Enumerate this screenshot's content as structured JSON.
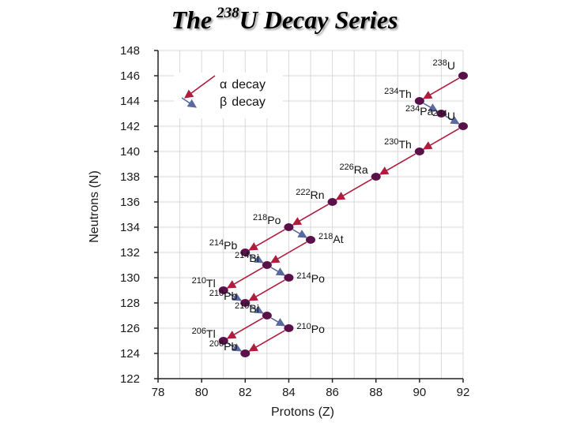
{
  "title": {
    "prefix": "The",
    "mass_number": "238",
    "rest": "U Decay Series"
  },
  "colors": {
    "alpha": "#b01c3c",
    "beta": "#5a6aa0",
    "point": "#5a1048",
    "grid": "#d9d9d9",
    "axis": "#222222"
  },
  "chart_data": {
    "type": "scatter",
    "title": "The 238U Decay Series",
    "xlabel": "Protons (Z)",
    "ylabel": "Neutrons (N)",
    "xlim": [
      78,
      92
    ],
    "ylim": [
      122,
      148
    ],
    "xticks": [
      "78",
      "80",
      "82",
      "84",
      "86",
      "88",
      "90",
      "92"
    ],
    "yticks": [
      "122",
      "124",
      "126",
      "128",
      "130",
      "132",
      "134",
      "136",
      "138",
      "140",
      "142",
      "144",
      "146",
      "148"
    ],
    "grid": true,
    "legend": {
      "position": "top-left",
      "entries": [
        {
          "symbol": "α",
          "text": "decay",
          "type": "alpha"
        },
        {
          "symbol": "β",
          "text": "decay",
          "type": "beta"
        }
      ]
    },
    "nuclides": [
      {
        "mass": "238",
        "el": "U",
        "z": 92,
        "n": 146
      },
      {
        "mass": "234",
        "el": "Th",
        "z": 90,
        "n": 144
      },
      {
        "mass": "234",
        "el": "Pa",
        "z": 91,
        "n": 143
      },
      {
        "mass": "234",
        "el": "U",
        "z": 92,
        "n": 142
      },
      {
        "mass": "230",
        "el": "Th",
        "z": 90,
        "n": 140
      },
      {
        "mass": "226",
        "el": "Ra",
        "z": 88,
        "n": 138
      },
      {
        "mass": "222",
        "el": "Rn",
        "z": 86,
        "n": 136
      },
      {
        "mass": "218",
        "el": "Po",
        "z": 84,
        "n": 134
      },
      {
        "mass": "218",
        "el": "At",
        "z": 85,
        "n": 133
      },
      {
        "mass": "214",
        "el": "Pb",
        "z": 82,
        "n": 132
      },
      {
        "mass": "214",
        "el": "Bi",
        "z": 83,
        "n": 131
      },
      {
        "mass": "214",
        "el": "Po",
        "z": 84,
        "n": 130
      },
      {
        "mass": "210",
        "el": "Tl",
        "z": 81,
        "n": 129
      },
      {
        "mass": "210",
        "el": "Pb",
        "z": 82,
        "n": 128
      },
      {
        "mass": "210",
        "el": "Bi",
        "z": 83,
        "n": 127
      },
      {
        "mass": "210",
        "el": "Po",
        "z": 84,
        "n": 126
      },
      {
        "mass": "206",
        "el": "Tl",
        "z": 81,
        "n": 125
      },
      {
        "mass": "206",
        "el": "Pb",
        "z": 82,
        "n": 124
      }
    ],
    "decays": [
      {
        "type": "alpha",
        "from": [
          92,
          146
        ],
        "to": [
          90,
          144
        ]
      },
      {
        "type": "beta",
        "from": [
          90,
          144
        ],
        "to": [
          91,
          143
        ]
      },
      {
        "type": "beta",
        "from": [
          91,
          143
        ],
        "to": [
          92,
          142
        ]
      },
      {
        "type": "alpha",
        "from": [
          92,
          142
        ],
        "to": [
          90,
          140
        ]
      },
      {
        "type": "alpha",
        "from": [
          90,
          140
        ],
        "to": [
          88,
          138
        ]
      },
      {
        "type": "alpha",
        "from": [
          88,
          138
        ],
        "to": [
          86,
          136
        ]
      },
      {
        "type": "alpha",
        "from": [
          86,
          136
        ],
        "to": [
          84,
          134
        ]
      },
      {
        "type": "alpha",
        "from": [
          84,
          134
        ],
        "to": [
          82,
          132
        ]
      },
      {
        "type": "beta",
        "from": [
          84,
          134
        ],
        "to": [
          85,
          133
        ]
      },
      {
        "type": "alpha",
        "from": [
          85,
          133
        ],
        "to": [
          83,
          131
        ]
      },
      {
        "type": "beta",
        "from": [
          82,
          132
        ],
        "to": [
          83,
          131
        ]
      },
      {
        "type": "beta",
        "from": [
          83,
          131
        ],
        "to": [
          84,
          130
        ]
      },
      {
        "type": "alpha",
        "from": [
          83,
          131
        ],
        "to": [
          81,
          129
        ]
      },
      {
        "type": "alpha",
        "from": [
          84,
          130
        ],
        "to": [
          82,
          128
        ]
      },
      {
        "type": "beta",
        "from": [
          81,
          129
        ],
        "to": [
          82,
          128
        ]
      },
      {
        "type": "beta",
        "from": [
          82,
          128
        ],
        "to": [
          83,
          127
        ]
      },
      {
        "type": "beta",
        "from": [
          83,
          127
        ],
        "to": [
          84,
          126
        ]
      },
      {
        "type": "alpha",
        "from": [
          83,
          127
        ],
        "to": [
          81,
          125
        ]
      },
      {
        "type": "alpha",
        "from": [
          84,
          126
        ],
        "to": [
          82,
          124
        ]
      },
      {
        "type": "beta",
        "from": [
          81,
          125
        ],
        "to": [
          82,
          124
        ]
      }
    ]
  }
}
